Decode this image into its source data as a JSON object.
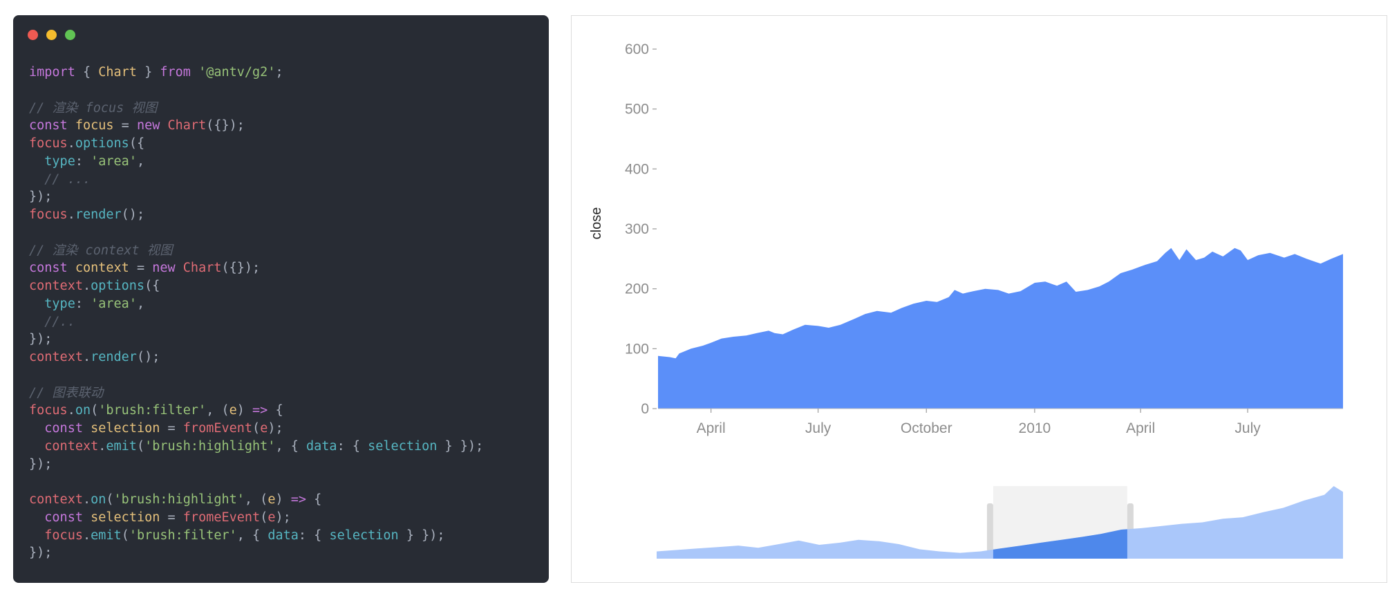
{
  "window": {
    "dots": [
      {
        "name": "close-dot",
        "color": "#ee5a52"
      },
      {
        "name": "minimize-dot",
        "color": "#f5bd2e"
      },
      {
        "name": "maximize-dot",
        "color": "#61c454"
      }
    ]
  },
  "code": {
    "lines": [
      [
        [
          "kw",
          "import"
        ],
        [
          "p",
          " { "
        ],
        [
          "var",
          "Chart"
        ],
        [
          "p",
          " } "
        ],
        [
          "kw",
          "from"
        ],
        [
          "p",
          " "
        ],
        [
          "str",
          "'@antv/g2'"
        ],
        [
          "p",
          ";"
        ]
      ],
      [],
      [
        [
          "cm",
          "// 渲染 focus 视图"
        ]
      ],
      [
        [
          "kw",
          "const"
        ],
        [
          "p",
          " "
        ],
        [
          "var",
          "focus"
        ],
        [
          "p",
          " = "
        ],
        [
          "kw",
          "new"
        ],
        [
          "p",
          " "
        ],
        [
          "fn",
          "Chart"
        ],
        [
          "p",
          "({});"
        ]
      ],
      [
        [
          "fn",
          "focus"
        ],
        [
          "p",
          "."
        ],
        [
          "prop",
          "options"
        ],
        [
          "p",
          "({"
        ]
      ],
      [
        [
          "p",
          "  "
        ],
        [
          "prop",
          "type"
        ],
        [
          "p",
          ": "
        ],
        [
          "str",
          "'area'"
        ],
        [
          "p",
          ","
        ]
      ],
      [
        [
          "p",
          "  "
        ],
        [
          "cm",
          "// ..."
        ]
      ],
      [
        [
          "p",
          "});"
        ]
      ],
      [
        [
          "fn",
          "focus"
        ],
        [
          "p",
          "."
        ],
        [
          "prop",
          "render"
        ],
        [
          "p",
          "();"
        ]
      ],
      [],
      [
        [
          "cm",
          "// 渲染 context 视图"
        ]
      ],
      [
        [
          "kw",
          "const"
        ],
        [
          "p",
          " "
        ],
        [
          "var",
          "context"
        ],
        [
          "p",
          " = "
        ],
        [
          "kw",
          "new"
        ],
        [
          "p",
          " "
        ],
        [
          "fn",
          "Chart"
        ],
        [
          "p",
          "({});"
        ]
      ],
      [
        [
          "fn",
          "context"
        ],
        [
          "p",
          "."
        ],
        [
          "prop",
          "options"
        ],
        [
          "p",
          "({"
        ]
      ],
      [
        [
          "p",
          "  "
        ],
        [
          "prop",
          "type"
        ],
        [
          "p",
          ": "
        ],
        [
          "str",
          "'area'"
        ],
        [
          "p",
          ","
        ]
      ],
      [
        [
          "p",
          "  "
        ],
        [
          "cm",
          "//.."
        ]
      ],
      [
        [
          "p",
          "});"
        ]
      ],
      [
        [
          "fn",
          "context"
        ],
        [
          "p",
          "."
        ],
        [
          "prop",
          "render"
        ],
        [
          "p",
          "();"
        ]
      ],
      [],
      [
        [
          "cm",
          "// 图表联动"
        ]
      ],
      [
        [
          "fn",
          "focus"
        ],
        [
          "p",
          "."
        ],
        [
          "prop",
          "on"
        ],
        [
          "p",
          "("
        ],
        [
          "str",
          "'brush:filter'"
        ],
        [
          "p",
          ", ("
        ],
        [
          "var",
          "e"
        ],
        [
          "p",
          ") "
        ],
        [
          "kw",
          "=>"
        ],
        [
          "p",
          " {"
        ]
      ],
      [
        [
          "p",
          "  "
        ],
        [
          "kw",
          "const"
        ],
        [
          "p",
          " "
        ],
        [
          "var",
          "selection"
        ],
        [
          "p",
          " = "
        ],
        [
          "fn",
          "fromEvent"
        ],
        [
          "p",
          "("
        ],
        [
          "fn",
          "e"
        ],
        [
          "p",
          ");"
        ]
      ],
      [
        [
          "p",
          "  "
        ],
        [
          "fn",
          "context"
        ],
        [
          "p",
          "."
        ],
        [
          "prop",
          "emit"
        ],
        [
          "p",
          "("
        ],
        [
          "str",
          "'brush:highlight'"
        ],
        [
          "p",
          ", { "
        ],
        [
          "prop",
          "data"
        ],
        [
          "p",
          ": { "
        ],
        [
          "prop",
          "selection"
        ],
        [
          "p",
          " } });"
        ]
      ],
      [
        [
          "p",
          "});"
        ]
      ],
      [],
      [
        [
          "fn",
          "context"
        ],
        [
          "p",
          "."
        ],
        [
          "prop",
          "on"
        ],
        [
          "p",
          "("
        ],
        [
          "str",
          "'brush:highlight'"
        ],
        [
          "p",
          ", ("
        ],
        [
          "var",
          "e"
        ],
        [
          "p",
          ") "
        ],
        [
          "kw",
          "=>"
        ],
        [
          "p",
          " {"
        ]
      ],
      [
        [
          "p",
          "  "
        ],
        [
          "kw",
          "const"
        ],
        [
          "p",
          " "
        ],
        [
          "var",
          "selection"
        ],
        [
          "p",
          " = "
        ],
        [
          "fn",
          "fromeEvent"
        ],
        [
          "p",
          "("
        ],
        [
          "fn",
          "e"
        ],
        [
          "p",
          ");"
        ]
      ],
      [
        [
          "p",
          "  "
        ],
        [
          "fn",
          "focus"
        ],
        [
          "p",
          "."
        ],
        [
          "prop",
          "emit"
        ],
        [
          "p",
          "("
        ],
        [
          "str",
          "'brush:filter'"
        ],
        [
          "p",
          ", { "
        ],
        [
          "prop",
          "data"
        ],
        [
          "p",
          ": { "
        ],
        [
          "prop",
          "selection"
        ],
        [
          "p",
          " } });"
        ]
      ],
      [
        [
          "p",
          "});"
        ]
      ]
    ]
  },
  "chart_data": [
    {
      "type": "area",
      "ylabel": "close",
      "ylim": [
        0,
        600
      ],
      "yticks": [
        0,
        100,
        200,
        300,
        400,
        500,
        600
      ],
      "xlim": [
        "2009-02-15",
        "2010-09-20"
      ],
      "xticks": [
        {
          "date": "2009-04-01",
          "label": "April"
        },
        {
          "date": "2009-07-01",
          "label": "July"
        },
        {
          "date": "2009-10-01",
          "label": "October"
        },
        {
          "date": "2010-01-01",
          "label": "2010"
        },
        {
          "date": "2010-04-01",
          "label": "April"
        },
        {
          "date": "2010-07-01",
          "label": "July"
        }
      ],
      "color": "#5b8ff9",
      "points": [
        [
          "2009-02-15",
          88
        ],
        [
          "2009-02-25",
          86
        ],
        [
          "2009-03-02",
          84
        ],
        [
          "2009-03-05",
          92
        ],
        [
          "2009-03-15",
          100
        ],
        [
          "2009-03-25",
          105
        ],
        [
          "2009-04-01",
          110
        ],
        [
          "2009-04-10",
          117
        ],
        [
          "2009-04-20",
          120
        ],
        [
          "2009-05-01",
          122
        ],
        [
          "2009-05-10",
          126
        ],
        [
          "2009-05-20",
          130
        ],
        [
          "2009-05-25",
          126
        ],
        [
          "2009-06-01",
          124
        ],
        [
          "2009-06-10",
          132
        ],
        [
          "2009-06-20",
          140
        ],
        [
          "2009-07-01",
          138
        ],
        [
          "2009-07-10",
          135
        ],
        [
          "2009-07-20",
          140
        ],
        [
          "2009-08-01",
          150
        ],
        [
          "2009-08-10",
          158
        ],
        [
          "2009-08-20",
          163
        ],
        [
          "2009-09-01",
          160
        ],
        [
          "2009-09-10",
          168
        ],
        [
          "2009-09-20",
          175
        ],
        [
          "2009-10-01",
          180
        ],
        [
          "2009-10-10",
          178
        ],
        [
          "2009-10-20",
          186
        ],
        [
          "2009-10-25",
          198
        ],
        [
          "2009-11-01",
          192
        ],
        [
          "2009-11-10",
          196
        ],
        [
          "2009-11-20",
          200
        ],
        [
          "2009-12-01",
          198
        ],
        [
          "2009-12-10",
          192
        ],
        [
          "2009-12-20",
          196
        ],
        [
          "2010-01-01",
          210
        ],
        [
          "2010-01-10",
          212
        ],
        [
          "2010-01-20",
          205
        ],
        [
          "2010-01-28",
          212
        ],
        [
          "2010-02-05",
          195
        ],
        [
          "2010-02-15",
          198
        ],
        [
          "2010-02-25",
          204
        ],
        [
          "2010-03-05",
          212
        ],
        [
          "2010-03-15",
          226
        ],
        [
          "2010-03-25",
          232
        ],
        [
          "2010-04-05",
          240
        ],
        [
          "2010-04-15",
          246
        ],
        [
          "2010-04-22",
          260
        ],
        [
          "2010-04-27",
          268
        ],
        [
          "2010-05-04",
          248
        ],
        [
          "2010-05-10",
          266
        ],
        [
          "2010-05-18",
          248
        ],
        [
          "2010-05-25",
          252
        ],
        [
          "2010-06-01",
          262
        ],
        [
          "2010-06-10",
          254
        ],
        [
          "2010-06-20",
          268
        ],
        [
          "2010-06-25",
          264
        ],
        [
          "2010-07-01",
          248
        ],
        [
          "2010-07-10",
          256
        ],
        [
          "2010-07-20",
          260
        ],
        [
          "2010-08-01",
          252
        ],
        [
          "2010-08-10",
          258
        ],
        [
          "2010-08-20",
          250
        ],
        [
          "2010-09-01",
          242
        ],
        [
          "2010-09-10",
          250
        ],
        [
          "2010-09-20",
          258
        ]
      ]
    },
    {
      "type": "area",
      "highlight": {
        "start": "2009-09-20",
        "end": "2010-04-10"
      },
      "color": "#aac7fa",
      "highlight_color": "#4e88eb",
      "brush_color": "#f2f2f2",
      "points": [
        [
          "2008-05-01",
          10
        ],
        [
          "2008-06-01",
          12
        ],
        [
          "2008-07-01",
          14
        ],
        [
          "2008-08-01",
          16
        ],
        [
          "2008-09-01",
          18
        ],
        [
          "2008-10-01",
          15
        ],
        [
          "2008-11-01",
          20
        ],
        [
          "2008-12-01",
          25
        ],
        [
          "2009-01-01",
          19
        ],
        [
          "2009-02-01",
          22
        ],
        [
          "2009-03-01",
          26
        ],
        [
          "2009-04-01",
          24
        ],
        [
          "2009-05-01",
          20
        ],
        [
          "2009-06-01",
          13
        ],
        [
          "2009-07-01",
          10
        ],
        [
          "2009-08-01",
          8
        ],
        [
          "2009-09-01",
          10
        ],
        [
          "2009-10-01",
          14
        ],
        [
          "2009-11-01",
          18
        ],
        [
          "2009-12-01",
          22
        ],
        [
          "2010-01-01",
          26
        ],
        [
          "2010-02-01",
          30
        ],
        [
          "2010-03-01",
          34
        ],
        [
          "2010-04-01",
          40
        ],
        [
          "2010-05-01",
          42
        ],
        [
          "2010-06-01",
          45
        ],
        [
          "2010-07-01",
          48
        ],
        [
          "2010-08-01",
          50
        ],
        [
          "2010-09-01",
          55
        ],
        [
          "2010-10-01",
          57
        ],
        [
          "2010-11-01",
          64
        ],
        [
          "2010-12-01",
          70
        ],
        [
          "2011-01-01",
          80
        ],
        [
          "2011-02-01",
          88
        ],
        [
          "2011-02-15",
          100
        ],
        [
          "2011-03-01",
          92
        ]
      ]
    }
  ]
}
